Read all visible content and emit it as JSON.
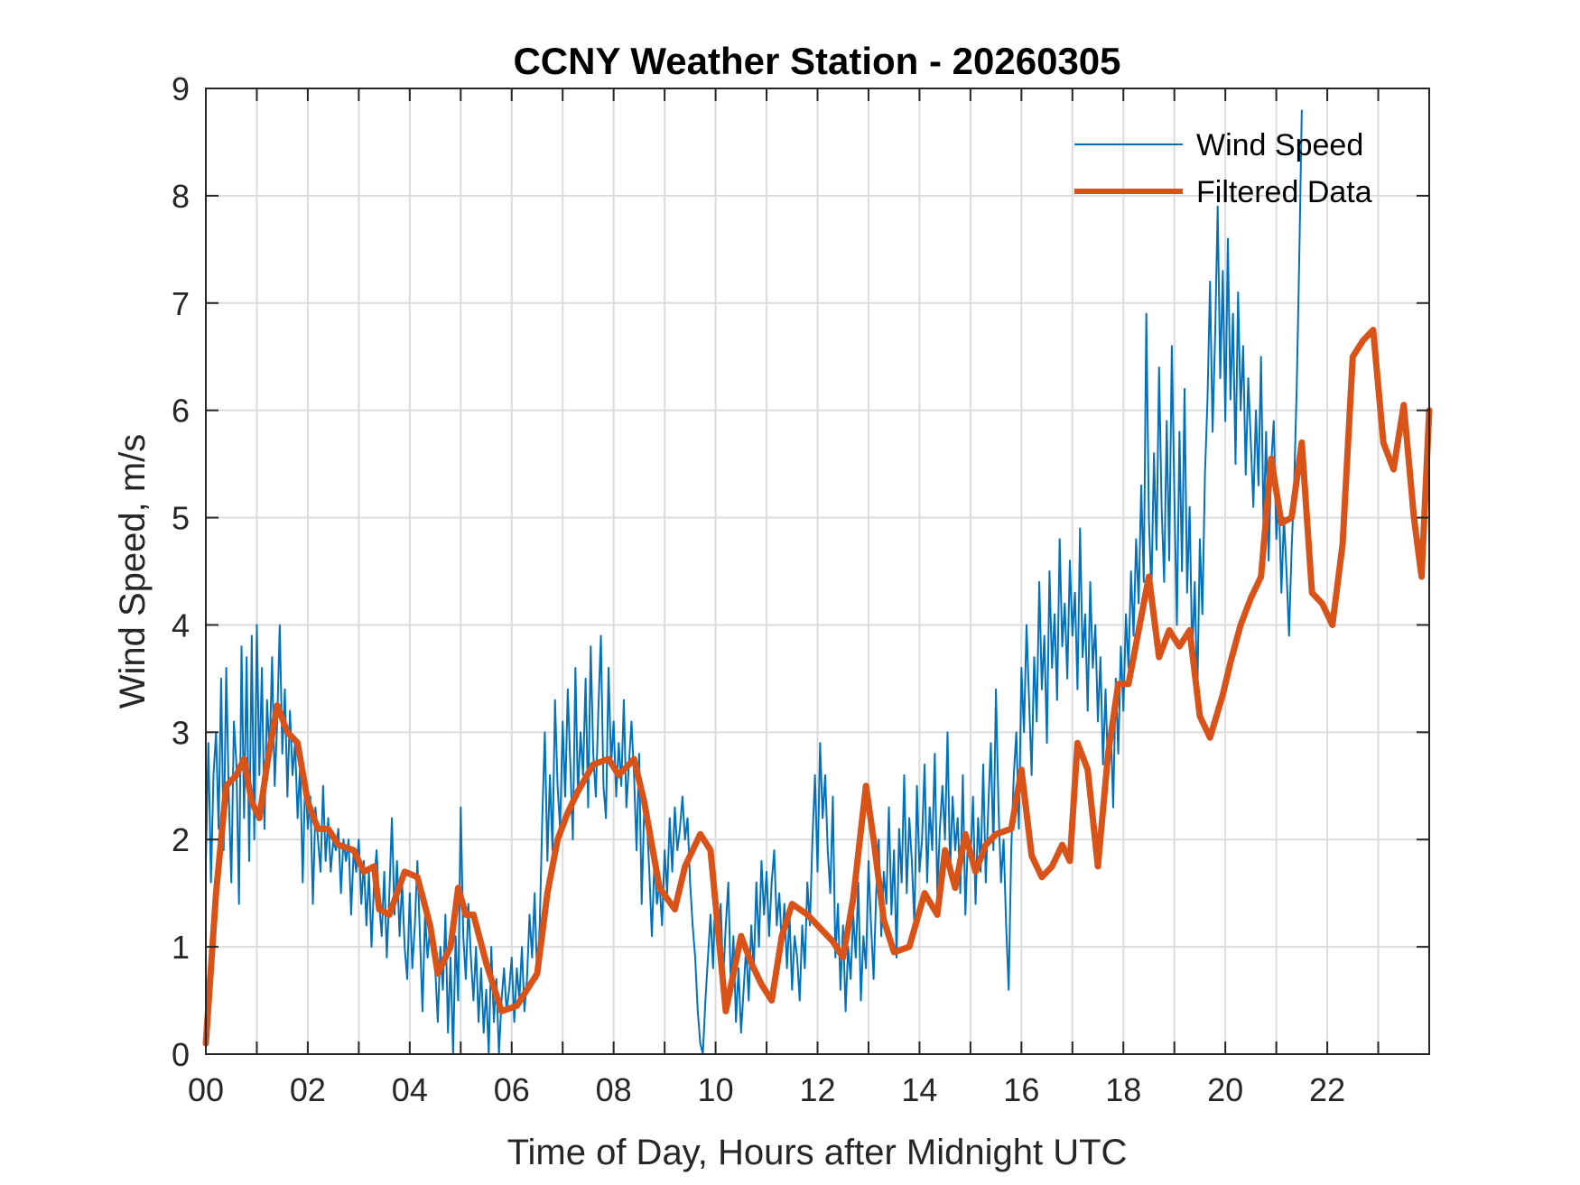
{
  "chart_data": {
    "type": "line",
    "title": "CCNY Weather Station - 20260305",
    "xlabel": "Time of Day, Hours after Midnight UTC",
    "ylabel": "Wind Speed, m/s",
    "xlim": [
      0,
      24
    ],
    "ylim": [
      0,
      9
    ],
    "grid": true,
    "legend_position": "top-right",
    "xticks": [
      0,
      2,
      4,
      6,
      8,
      10,
      12,
      14,
      16,
      18,
      20,
      22
    ],
    "xtick_labels": [
      "00",
      "02",
      "04",
      "06",
      "08",
      "10",
      "12",
      "14",
      "16",
      "18",
      "20",
      "22"
    ],
    "xgrid_minor_step": 1,
    "yticks": [
      0,
      1,
      2,
      3,
      4,
      5,
      6,
      7,
      8,
      9
    ],
    "ytick_labels": [
      "0",
      "1",
      "2",
      "3",
      "4",
      "5",
      "6",
      "7",
      "8",
      "9"
    ],
    "series": [
      {
        "name": "Wind Speed",
        "color": "#0072BD",
        "style": "thin",
        "x_start": 0,
        "x_step": 0.05,
        "values": [
          1.8,
          2.9,
          1.6,
          2.6,
          3.0,
          2.1,
          3.5,
          1.9,
          3.6,
          2.4,
          1.6,
          3.1,
          2.7,
          1.4,
          3.8,
          2.2,
          3.7,
          1.8,
          3.9,
          2.0,
          4.0,
          2.6,
          3.6,
          2.1,
          3.3,
          2.8,
          3.7,
          2.5,
          3.1,
          4.0,
          2.8,
          3.4,
          2.4,
          3.2,
          2.6,
          2.9,
          2.2,
          2.7,
          1.6,
          2.6,
          2.1,
          2.4,
          1.4,
          2.3,
          2.0,
          1.7,
          2.5,
          1.8,
          2.2,
          1.7,
          2.0,
          1.9,
          2.1,
          1.5,
          2.0,
          1.8,
          2.0,
          1.3,
          1.9,
          1.7,
          2.0,
          1.4,
          1.8,
          1.2,
          1.7,
          1.0,
          1.6,
          1.9,
          1.4,
          1.1,
          1.7,
          0.9,
          1.5,
          2.2,
          1.3,
          1.8,
          1.1,
          1.6,
          1.0,
          0.7,
          1.5,
          0.8,
          1.2,
          1.8,
          1.1,
          0.4,
          1.3,
          0.9,
          1.2,
          1.0,
          0.8,
          0.3,
          1.0,
          0.6,
          1.3,
          0.2,
          0.9,
          0.0,
          1.1,
          0.5,
          2.3,
          1.1,
          0.7,
          1.4,
          0.9,
          0.5,
          1.0,
          0.3,
          0.8,
          0.2,
          0.6,
          0.0,
          1.0,
          0.3,
          0.7,
          0.0,
          0.5,
          0.8,
          0.4,
          0.6,
          0.9,
          0.3,
          0.8,
          0.5,
          1.0,
          0.4,
          0.7,
          1.3,
          0.9,
          1.5,
          0.7,
          1.2,
          2.2,
          3.0,
          1.8,
          2.6,
          1.9,
          3.3,
          2.5,
          2.1,
          3.1,
          2.4,
          3.4,
          2.7,
          2.0,
          3.6,
          2.4,
          3.0,
          2.6,
          3.5,
          2.3,
          3.8,
          2.8,
          2.4,
          3.2,
          3.9,
          2.5,
          2.2,
          3.6,
          2.7,
          3.1,
          2.4,
          2.9,
          2.5,
          3.3,
          2.3,
          2.7,
          3.1,
          2.6,
          1.9,
          2.8,
          1.4,
          2.3,
          2.2,
          1.7,
          1.1,
          1.8,
          1.4,
          1.6,
          1.2,
          1.9,
          1.5,
          2.2,
          1.7,
          2.3,
          1.9,
          2.1,
          2.4,
          2.0,
          2.2,
          1.6,
          1.2,
          0.9,
          0.4,
          0.1,
          0.0,
          0.5,
          0.9,
          1.3,
          0.8,
          1.6,
          1.0,
          1.4,
          0.7,
          1.2,
          1.6,
          0.6,
          1.1,
          0.3,
          0.8,
          0.2,
          0.6,
          1.0,
          0.5,
          1.2,
          0.8,
          1.6,
          1.0,
          1.8,
          1.3,
          1.7,
          1.1,
          1.6,
          1.9,
          1.2,
          1.5,
          1.0,
          1.4,
          0.8,
          1.3,
          0.6,
          1.1,
          0.9,
          0.5,
          1.2,
          0.8,
          1.6,
          1.2,
          2.0,
          2.6,
          1.7,
          2.9,
          2.2,
          2.6,
          1.9,
          1.5,
          2.4,
          0.9,
          1.4,
          0.6,
          1.2,
          0.4,
          1.0,
          0.7,
          1.3,
          0.9,
          1.6,
          0.5,
          1.1,
          0.8,
          1.8,
          1.2,
          0.7,
          1.5,
          2.0,
          1.1,
          1.7,
          1.4,
          2.3,
          1.3,
          1.9,
          0.9,
          2.1,
          1.6,
          2.6,
          1.5,
          2.2,
          1.8,
          1.2,
          2.5,
          1.7,
          2.0,
          2.7,
          1.6,
          2.3,
          1.9,
          2.8,
          1.5,
          2.1,
          2.5,
          2.0,
          3.0,
          1.7,
          2.4,
          1.9,
          2.2,
          1.5,
          2.6,
          1.3,
          2.0,
          1.8,
          2.4,
          1.4,
          2.2,
          1.7,
          2.7,
          1.6,
          2.3,
          2.9,
          1.9,
          3.4,
          2.3,
          1.6,
          2.0,
          1.2,
          0.6,
          1.9,
          2.6,
          3.0,
          2.1,
          3.6,
          3.0,
          4.0,
          3.3,
          2.6,
          3.7,
          3.1,
          4.4,
          3.4,
          3.9,
          2.9,
          4.5,
          3.6,
          4.1,
          3.3,
          4.8,
          3.8,
          4.2,
          3.5,
          4.6,
          3.9,
          4.3,
          3.4,
          4.9,
          3.7,
          4.1,
          3.2,
          4.4,
          3.6,
          4.0,
          3.1,
          3.7,
          2.7,
          3.4,
          2.6,
          3.1,
          2.3,
          3.5,
          2.8,
          3.8,
          3.2,
          4.1,
          3.6,
          4.5,
          3.9,
          4.8,
          4.2,
          5.3,
          4.4,
          6.9,
          5.0,
          4.3,
          5.6,
          4.7,
          6.4,
          5.1,
          4.4,
          5.9,
          4.6,
          6.6,
          5.2,
          4.0,
          5.8,
          4.5,
          6.2,
          4.3,
          5.1,
          3.7,
          4.4,
          3.3,
          4.8,
          4.1,
          5.4,
          6.1,
          7.2,
          5.8,
          6.7,
          7.9,
          6.3,
          7.3,
          5.9,
          7.6,
          6.1,
          6.9,
          5.5,
          7.1,
          6.0,
          6.6,
          5.4,
          6.3,
          5.7,
          5.1,
          6.0,
          5.3,
          6.5,
          4.9,
          5.8,
          4.6,
          5.5,
          5.9,
          4.8,
          5.2,
          4.3,
          5.0,
          4.5,
          3.9,
          4.7,
          5.3,
          6.2,
          7.4,
          8.8
        ]
      },
      {
        "name": "Filtered Data",
        "color": "#D95319",
        "style": "thick",
        "points": [
          [
            0,
            0.1
          ],
          [
            0.2,
            1.5
          ],
          [
            0.4,
            2.5
          ],
          [
            0.6,
            2.6
          ],
          [
            0.75,
            2.75
          ],
          [
            0.9,
            2.35
          ],
          [
            1.05,
            2.2
          ],
          [
            1.2,
            2.7
          ],
          [
            1.4,
            3.25
          ],
          [
            1.6,
            3.0
          ],
          [
            1.8,
            2.9
          ],
          [
            2.0,
            2.35
          ],
          [
            2.2,
            2.1
          ],
          [
            2.4,
            2.1
          ],
          [
            2.6,
            1.95
          ],
          [
            2.9,
            1.9
          ],
          [
            3.1,
            1.7
          ],
          [
            3.3,
            1.75
          ],
          [
            3.4,
            1.35
          ],
          [
            3.6,
            1.3
          ],
          [
            3.9,
            1.7
          ],
          [
            4.15,
            1.65
          ],
          [
            4.4,
            1.2
          ],
          [
            4.55,
            0.75
          ],
          [
            4.8,
            1.0
          ],
          [
            4.95,
            1.55
          ],
          [
            5.1,
            1.3
          ],
          [
            5.25,
            1.3
          ],
          [
            5.5,
            0.85
          ],
          [
            5.8,
            0.4
          ],
          [
            6.1,
            0.45
          ],
          [
            6.3,
            0.6
          ],
          [
            6.5,
            0.75
          ],
          [
            6.7,
            1.5
          ],
          [
            6.9,
            2.0
          ],
          [
            7.1,
            2.25
          ],
          [
            7.3,
            2.45
          ],
          [
            7.6,
            2.7
          ],
          [
            7.9,
            2.75
          ],
          [
            8.1,
            2.6
          ],
          [
            8.4,
            2.75
          ],
          [
            8.6,
            2.35
          ],
          [
            8.9,
            1.55
          ],
          [
            9.2,
            1.35
          ],
          [
            9.4,
            1.75
          ],
          [
            9.7,
            2.05
          ],
          [
            9.9,
            1.9
          ],
          [
            10.1,
            0.9
          ],
          [
            10.2,
            0.4
          ],
          [
            10.5,
            1.1
          ],
          [
            10.7,
            0.85
          ],
          [
            10.9,
            0.65
          ],
          [
            11.1,
            0.5
          ],
          [
            11.3,
            1.1
          ],
          [
            11.5,
            1.4
          ],
          [
            11.8,
            1.3
          ],
          [
            12.0,
            1.2
          ],
          [
            12.3,
            1.05
          ],
          [
            12.5,
            0.9
          ],
          [
            12.7,
            1.45
          ],
          [
            12.95,
            2.5
          ],
          [
            13.1,
            2.0
          ],
          [
            13.3,
            1.25
          ],
          [
            13.5,
            0.95
          ],
          [
            13.8,
            1.0
          ],
          [
            14.1,
            1.5
          ],
          [
            14.35,
            1.3
          ],
          [
            14.5,
            1.9
          ],
          [
            14.7,
            1.55
          ],
          [
            14.9,
            2.05
          ],
          [
            15.1,
            1.7
          ],
          [
            15.3,
            1.95
          ],
          [
            15.5,
            2.05
          ],
          [
            15.8,
            2.1
          ],
          [
            16.0,
            2.65
          ],
          [
            16.2,
            1.85
          ],
          [
            16.4,
            1.65
          ],
          [
            16.6,
            1.75
          ],
          [
            16.8,
            1.95
          ],
          [
            16.95,
            1.8
          ],
          [
            17.1,
            2.9
          ],
          [
            17.3,
            2.65
          ],
          [
            17.5,
            1.75
          ],
          [
            17.7,
            2.8
          ],
          [
            17.9,
            3.45
          ],
          [
            18.1,
            3.45
          ],
          [
            18.3,
            3.95
          ],
          [
            18.5,
            4.45
          ],
          [
            18.7,
            3.7
          ],
          [
            18.9,
            3.95
          ],
          [
            19.1,
            3.8
          ],
          [
            19.3,
            3.95
          ],
          [
            19.5,
            3.15
          ],
          [
            19.7,
            2.95
          ],
          [
            19.95,
            3.35
          ],
          [
            20.1,
            3.65
          ],
          [
            20.3,
            4.0
          ],
          [
            20.5,
            4.25
          ],
          [
            20.7,
            4.45
          ],
          [
            20.9,
            5.55
          ],
          [
            21.1,
            4.95
          ],
          [
            21.3,
            5.0
          ],
          [
            21.5,
            5.7
          ],
          [
            21.7,
            4.3
          ],
          [
            21.9,
            4.2
          ],
          [
            22.1,
            4.0
          ],
          [
            22.3,
            4.75
          ],
          [
            22.5,
            6.5
          ],
          [
            22.7,
            6.65
          ],
          [
            22.9,
            6.75
          ],
          [
            23.1,
            5.7
          ],
          [
            23.3,
            5.45
          ],
          [
            23.5,
            6.05
          ],
          [
            23.7,
            5.0
          ],
          [
            23.85,
            4.45
          ],
          [
            24.0,
            6.0
          ]
        ]
      }
    ]
  }
}
